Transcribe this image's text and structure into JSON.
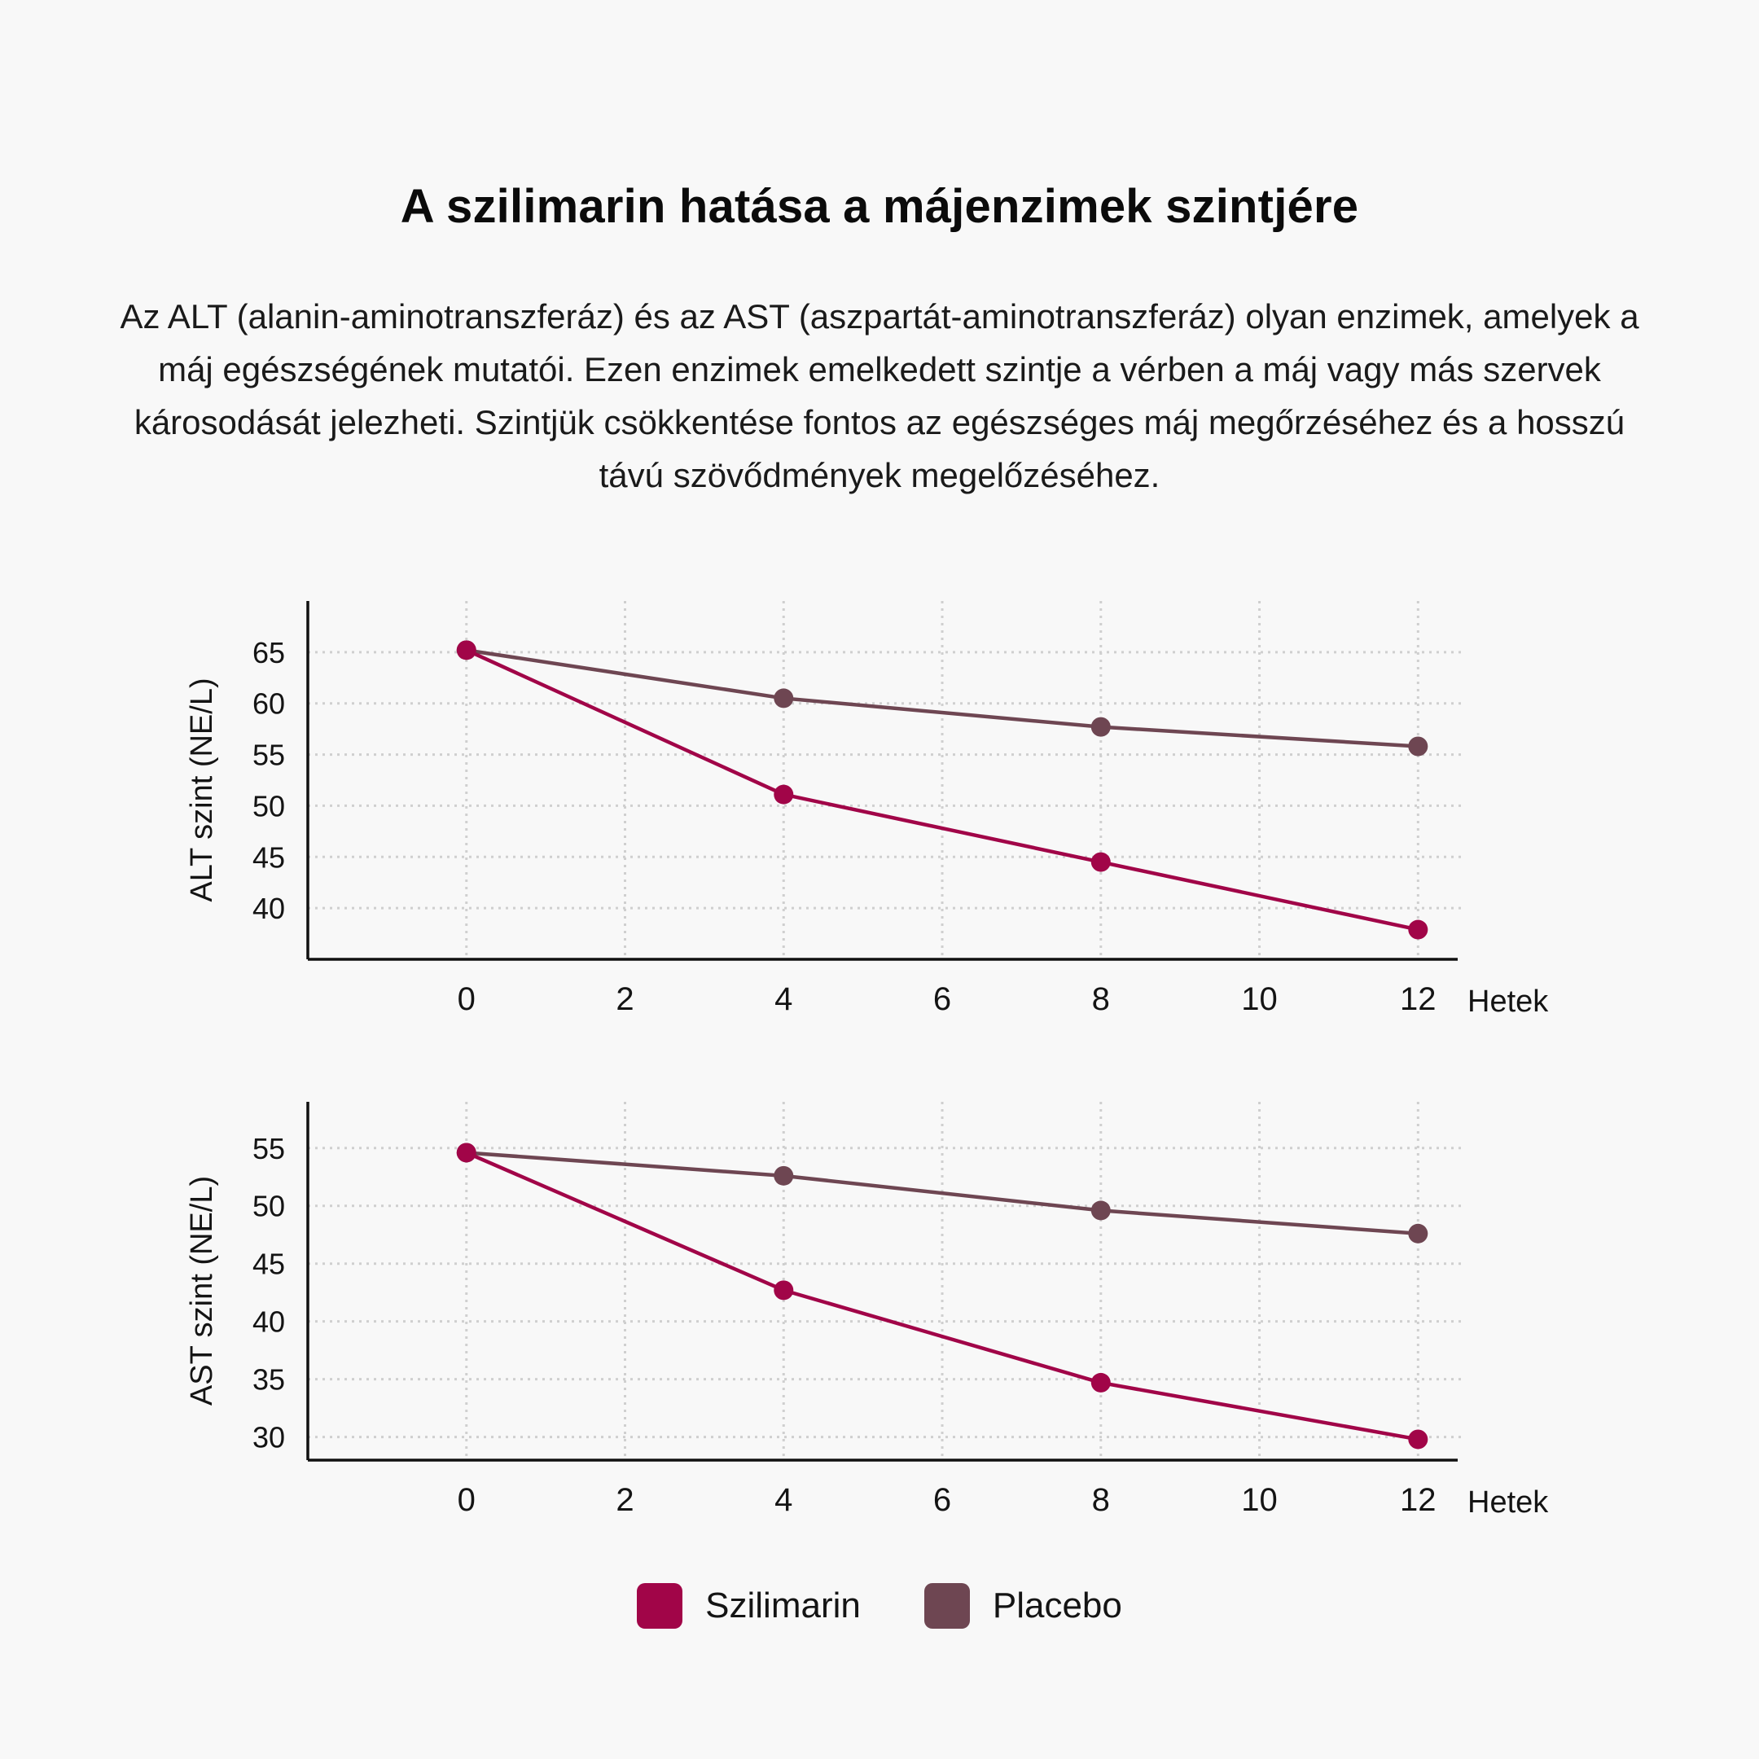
{
  "title": "A szilimarin hatása a májenzimek szintjére",
  "description": "Az ALT (alanin-aminotranszferáz) és az AST (aszpartát-aminotranszferáz) olyan enzimek, amelyek a máj egészségének mutatói. Ezen enzimek emelkedett szintje a vérben a máj vagy más szervek károsodását jelezheti. Szintjük csökkentése fontos az egészséges máj megőrzéséhez és a hosszú távú szövődmények megelőzéséhez.",
  "colors": {
    "szilimarin": "#a10548",
    "placebo": "#6e4652",
    "grid": "#cfcfcf",
    "axis": "#111111"
  },
  "legend": [
    {
      "label": "Szilimarin",
      "color": "#a10548"
    },
    {
      "label": "Placebo",
      "color": "#6e4652"
    }
  ],
  "chart_data": [
    {
      "type": "line",
      "ylabel": "ALT szint (NE/L)",
      "xlabel": "Hetek",
      "xlim": [
        -2,
        12.5
      ],
      "ylim": [
        35,
        70
      ],
      "xticks": [
        0,
        2,
        4,
        6,
        8,
        10,
        12
      ],
      "yticks": [
        40,
        45,
        50,
        55,
        60,
        65
      ],
      "grid": true,
      "series": [
        {
          "name": "Placebo",
          "color": "#6e4652",
          "x": [
            0,
            4,
            8,
            12
          ],
          "y": [
            65.2,
            60.5,
            57.7,
            55.8
          ]
        },
        {
          "name": "Szilimarin",
          "color": "#a10548",
          "x": [
            0,
            4,
            8,
            12
          ],
          "y": [
            65.2,
            51.1,
            44.5,
            37.9
          ]
        }
      ]
    },
    {
      "type": "line",
      "ylabel": "AST szint (NE/L)",
      "xlabel": "Hetek",
      "xlim": [
        -2,
        12.5
      ],
      "ylim": [
        28,
        59
      ],
      "xticks": [
        0,
        2,
        4,
        6,
        8,
        10,
        12
      ],
      "yticks": [
        30,
        35,
        40,
        45,
        50,
        55
      ],
      "grid": true,
      "series": [
        {
          "name": "Placebo",
          "color": "#6e4652",
          "x": [
            0,
            4,
            8,
            12
          ],
          "y": [
            54.6,
            52.6,
            49.6,
            47.6
          ]
        },
        {
          "name": "Szilimarin",
          "color": "#a10548",
          "x": [
            0,
            4,
            8,
            12
          ],
          "y": [
            54.6,
            42.7,
            34.7,
            29.8
          ]
        }
      ]
    }
  ]
}
